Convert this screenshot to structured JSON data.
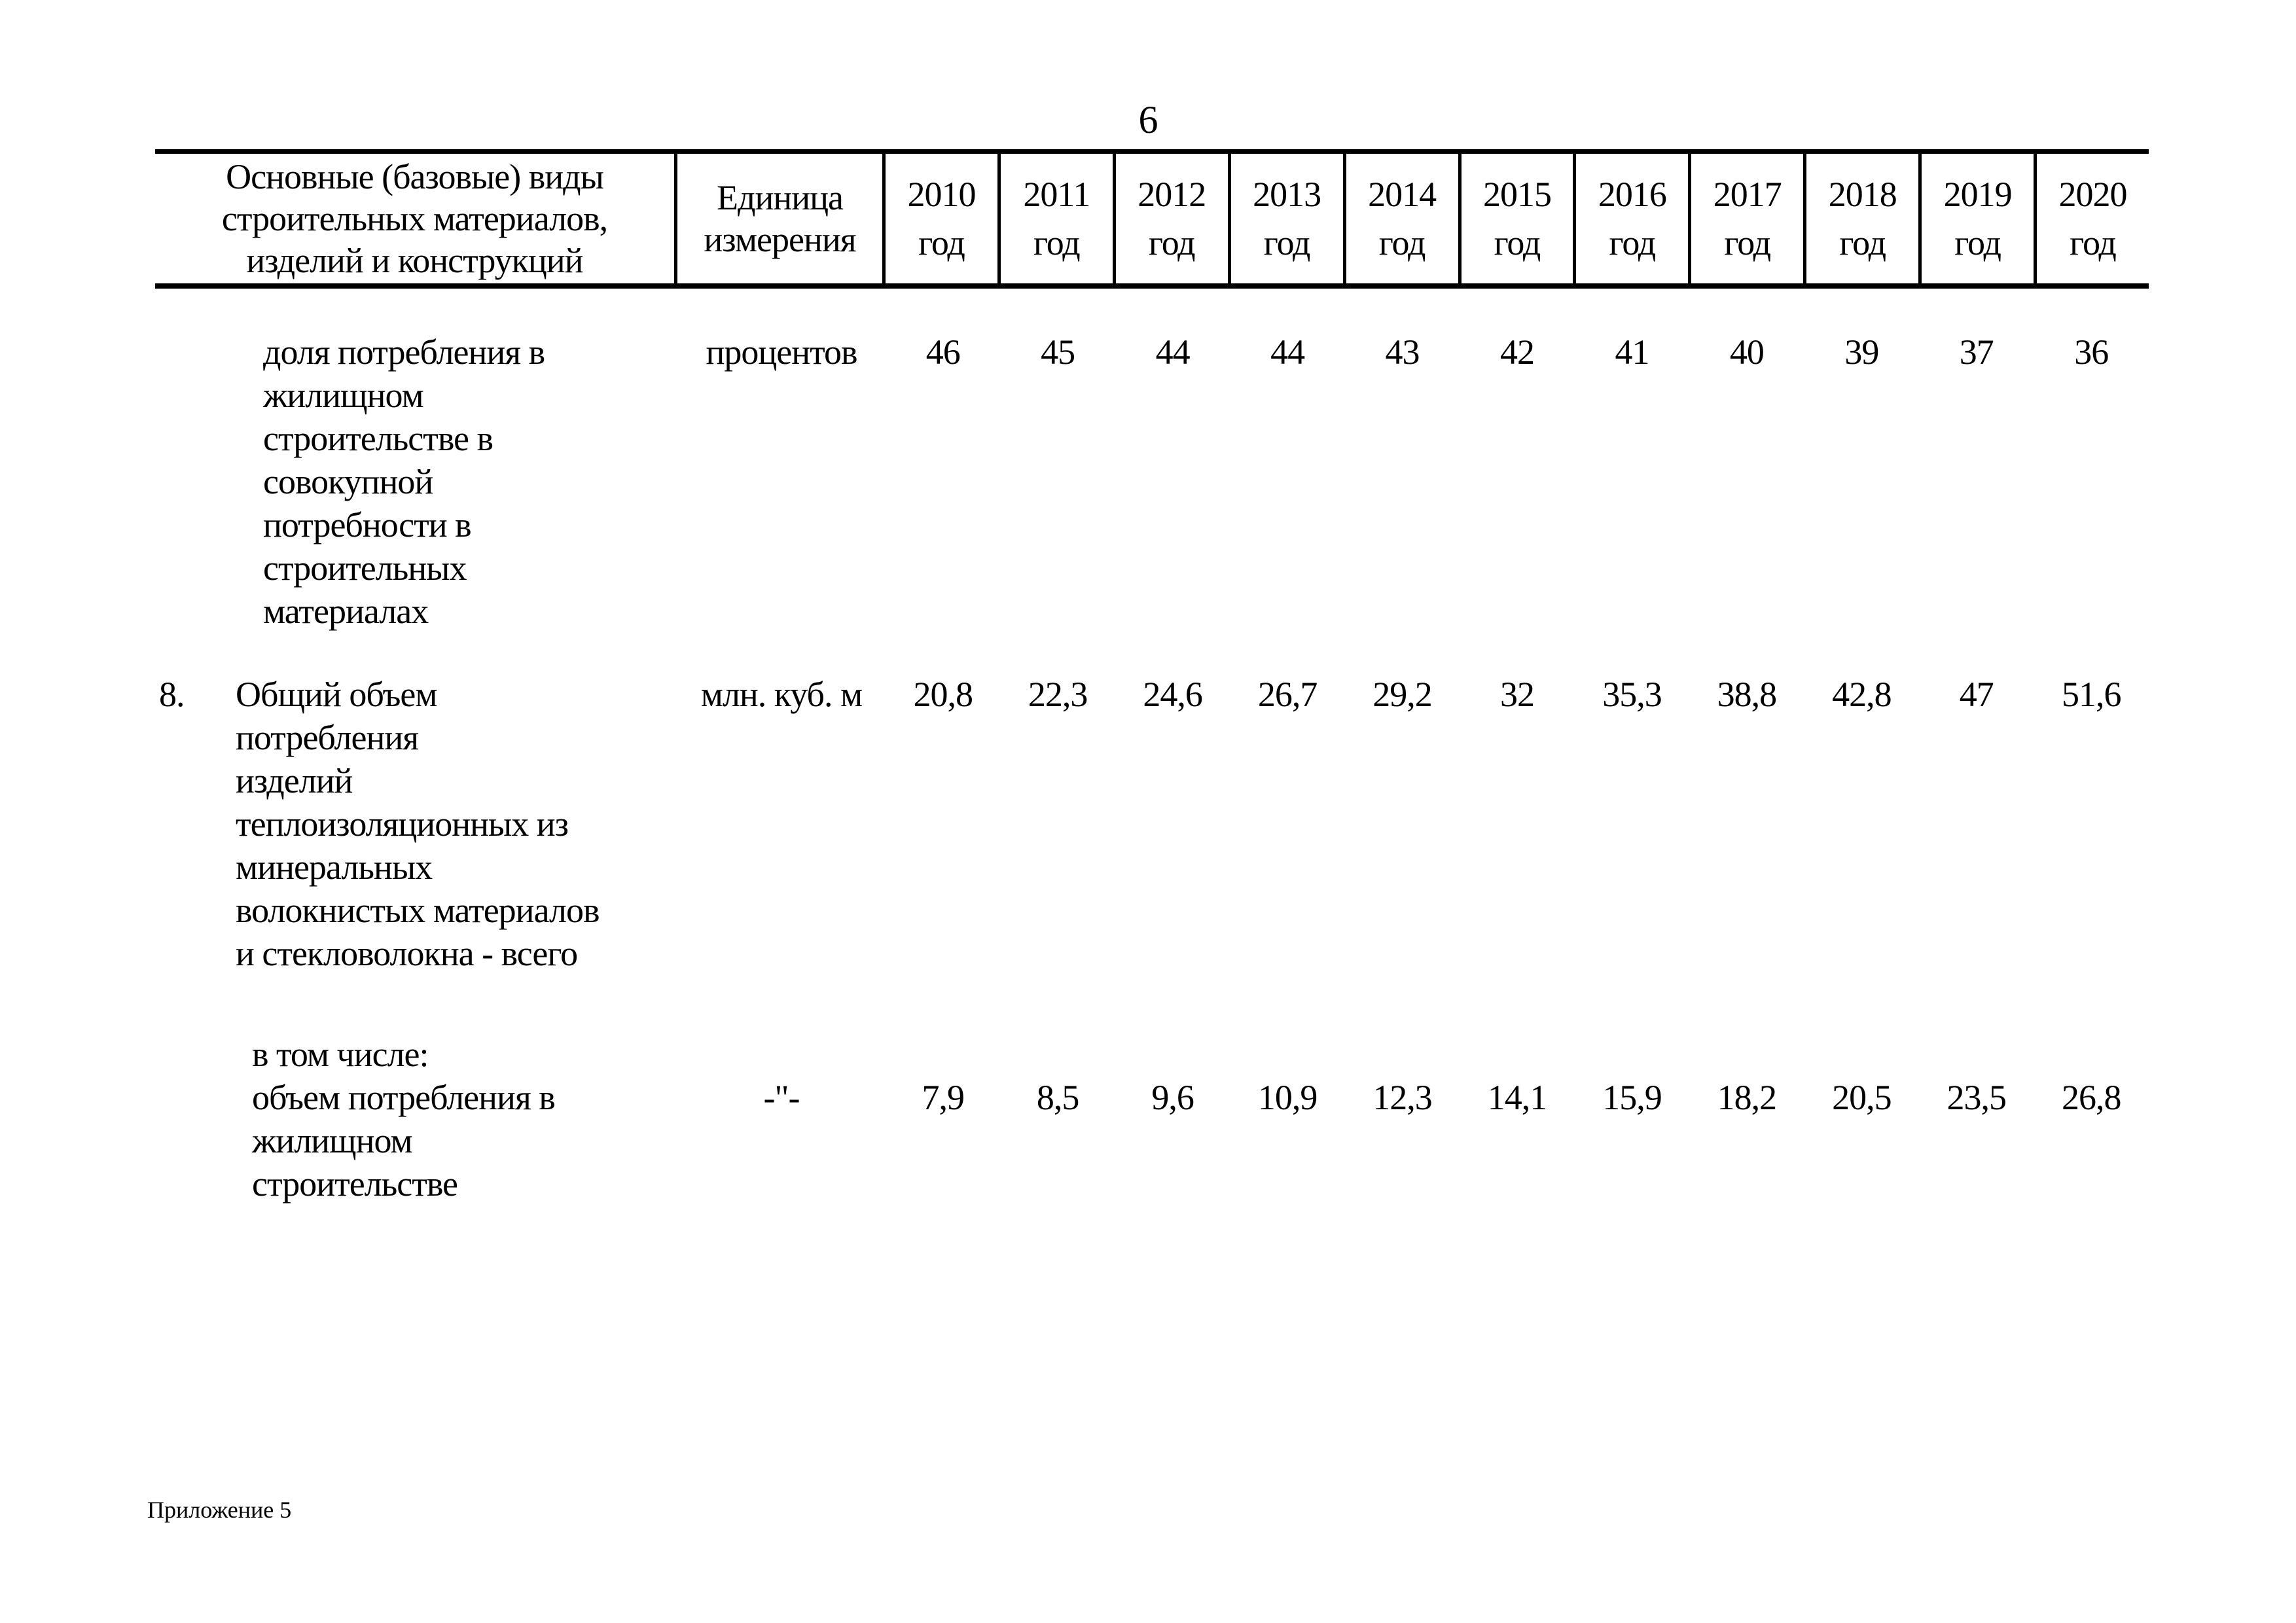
{
  "page": {
    "number": "6",
    "footer": "Приложение 5"
  },
  "table": {
    "header": {
      "col_materials": "Основные (базовые) виды\nстроительных материалов,\nизделий и конструкций",
      "col_unit": "Единица\nизмерения",
      "year_word": "год",
      "years": [
        "2010",
        "2011",
        "2012",
        "2013",
        "2014",
        "2015",
        "2016",
        "2017",
        "2018",
        "2019",
        "2020"
      ]
    },
    "rows": [
      {
        "number": "",
        "prefix": "",
        "label": "доля потребления в\nжилищном\nстроительстве в\nсовокупной\nпотребности в\nстроительных\nматериалах",
        "unit": "процентов",
        "values": [
          "46",
          "45",
          "44",
          "44",
          "43",
          "42",
          "41",
          "40",
          "39",
          "37",
          "36"
        ]
      },
      {
        "number": "8.",
        "prefix": "",
        "label": "Общий объем\nпотребления\nизделий\nтеплоизоляционных из\nминеральных\nволокнистых материалов\nи стекловолокна - всего",
        "unit": "млн. куб. м",
        "values": [
          "20,8",
          "22,3",
          "24,6",
          "26,7",
          "29,2",
          "32",
          "35,3",
          "38,8",
          "42,8",
          "47",
          "51,6"
        ]
      },
      {
        "number": "",
        "prefix": "в том числе:",
        "label": "объем потребления в\nжилищном\nстроительстве",
        "unit": "-\"-",
        "values": [
          "7,9",
          "8,5",
          "9,6",
          "10,9",
          "12,3",
          "14,1",
          "15,9",
          "18,2",
          "20,5",
          "23,5",
          "26,8"
        ]
      }
    ]
  }
}
